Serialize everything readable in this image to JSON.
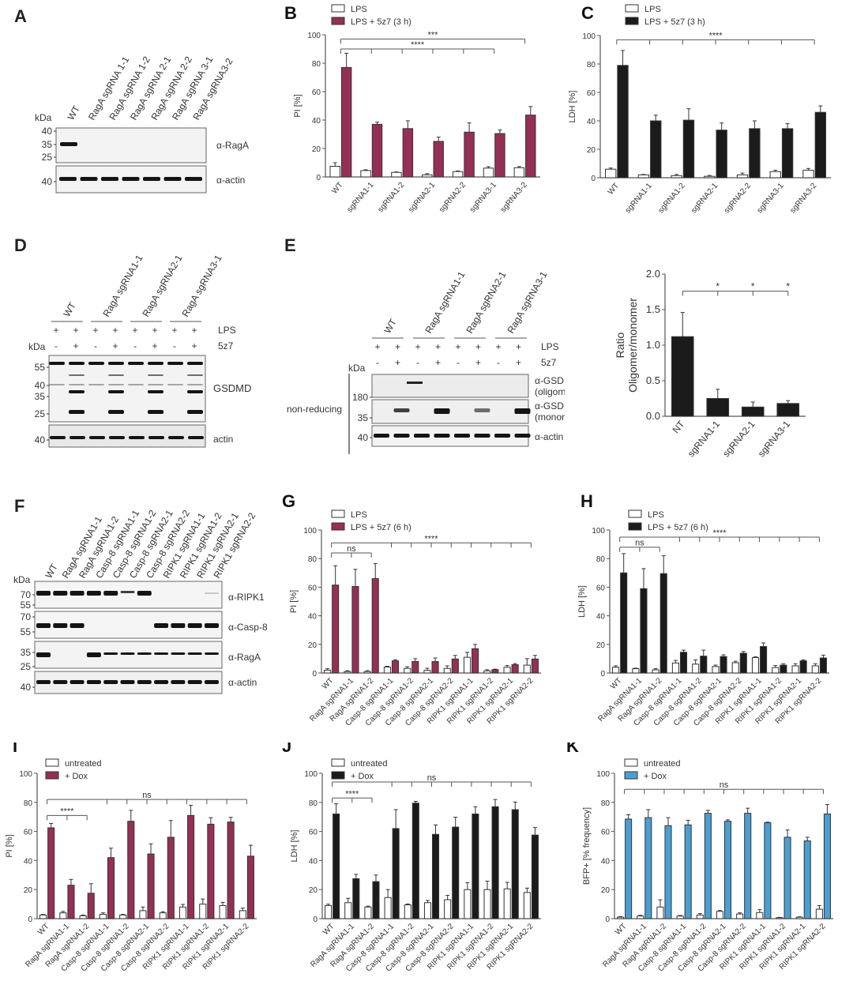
{
  "colors": {
    "maroon": "#952f55",
    "black": "#1b1b1b",
    "blue": "#4a9fd0",
    "white": "#ffffff",
    "axis": "#555555"
  },
  "panels": {
    "A": {
      "letter": "A",
      "kda_label": "kDa",
      "lanes": [
        "WT",
        "RagA sgRNA 1-1",
        "RagA sgRNA 1-2",
        "RagA sgRNA 2-1",
        "RagA sgRNA 2-2",
        "RagA sgRNA 3-1",
        "RagA sgRNA3-2"
      ],
      "blots": [
        {
          "label": "α-RagA",
          "markers": [
            "40",
            "35",
            "25"
          ]
        },
        {
          "label": "α-actin",
          "markers": [
            "40"
          ]
        }
      ]
    },
    "D": {
      "letter": "D",
      "kda_label": "kDa",
      "groups": [
        "WT",
        "RagA sgRNA1-1",
        "RagA sgRNA2-1",
        "RagA sgRNA3-1"
      ],
      "lps_label": "LPS",
      "lps_signs": [
        "+",
        "+",
        "+",
        "+",
        "+",
        "+",
        "+",
        "+"
      ],
      "z_label": "5z7",
      "z_signs": [
        "-",
        "+",
        "-",
        "+",
        "-",
        "+",
        "-",
        "+"
      ],
      "blots": [
        {
          "label": "GSDMD",
          "markers": [
            "55",
            "40",
            "35",
            "25"
          ]
        },
        {
          "label": "actin",
          "markers": [
            "40"
          ]
        }
      ]
    },
    "E": {
      "letter": "E",
      "kda_label": "kDa",
      "groups": [
        "WT",
        "RagA sgRNA1-1",
        "RagA sgRNA2-1",
        "RagA sgRNA3-1"
      ],
      "lps_label": "LPS",
      "lps_signs": [
        "+",
        "+",
        "+",
        "+",
        "+",
        "+",
        "+",
        "+"
      ],
      "z_label": "5z7",
      "z_signs": [
        "-",
        "+",
        "-",
        "+",
        "-",
        "+",
        "-",
        "+"
      ],
      "side_label": "non-reducing",
      "blots": [
        {
          "label": "α-GSDMD",
          "sublabel": "(oligomer)",
          "markers": [
            "180"
          ]
        },
        {
          "label": "α-GSDMD",
          "sublabel": "(monomer)",
          "markers": [
            "35"
          ]
        },
        {
          "label": "α-actin",
          "markers": [
            "40"
          ]
        }
      ]
    },
    "F": {
      "letter": "F",
      "kda_label": "kDa",
      "lanes": [
        "WT",
        "RagA sgRNA1-1",
        "RagA sgRNA1-2",
        "Casp-8 sgRNA1-1",
        "Casp-8 sgRNA1-2",
        "Casp-8 sgRNA2-1",
        "Casp-8 sgRNA2-2",
        "RIPK1 sgRNA1-1",
        "RIPK1 sgRNA1-2",
        "RIPK1 sgRNA2-1",
        "RIPK1 sgRNA2-2"
      ],
      "blots": [
        {
          "label": "α-RIPK1",
          "markers": [
            "70",
            "55"
          ]
        },
        {
          "label": "α-Casp-8",
          "markers": [
            "70",
            "55"
          ]
        },
        {
          "label": "α-RagA",
          "markers": [
            "35",
            "25"
          ]
        },
        {
          "label": "α-actin",
          "markers": [
            "40"
          ]
        }
      ]
    }
  },
  "chart_data": [
    {
      "id": "B",
      "letter": "B",
      "type": "bar",
      "categories": [
        "WT",
        "sgRNA1-1",
        "sgRNA1-2",
        "sgRNA2-1",
        "sgRNA2-2",
        "sgRNA3-1",
        "sgRNA3-2"
      ],
      "series": [
        {
          "name": "LPS",
          "color": "#ffffff",
          "values": [
            7.5,
            4.5,
            3.2,
            1.5,
            3.8,
            6.2,
            6.5
          ],
          "errors": [
            2.5,
            0.5,
            0.3,
            0.8,
            0.4,
            1.0,
            0.8
          ]
        },
        {
          "name": "LPS + 5z7 (3 h)",
          "color": "#952f55",
          "values": [
            77,
            37,
            34,
            25,
            31.5,
            30.5,
            43.5
          ],
          "errors": [
            10,
            1.5,
            5.5,
            3,
            6.5,
            2.5,
            6
          ]
        }
      ],
      "ylabel": "PI [%]",
      "ylim": [
        0,
        100
      ],
      "yticks": [
        0,
        20,
        40,
        60,
        80,
        100
      ],
      "brackets": [
        {
          "label": "***",
          "from": 0,
          "to": 6,
          "level": 97,
          "ticks": [
            0,
            6
          ]
        },
        {
          "label": "****",
          "from": 0,
          "to": 5,
          "level": 90,
          "ticks": [
            0,
            1,
            2,
            3,
            4,
            5
          ]
        }
      ],
      "legend": "top-left"
    },
    {
      "id": "C",
      "letter": "C",
      "type": "bar",
      "categories": [
        "WT",
        "sgRNA1-1",
        "sgRNA1-2",
        "sgRNA2-1",
        "sgRNA2-2",
        "sgRNA3-1",
        "sgRNA3-2"
      ],
      "series": [
        {
          "name": "LPS",
          "color": "#ffffff",
          "values": [
            6,
            2,
            1.5,
            1,
            2,
            4.3,
            5.3
          ],
          "errors": [
            0.8,
            0.3,
            0.8,
            0.6,
            1.2,
            1.0,
            1.2
          ]
        },
        {
          "name": "LPS + 5z7 (3 h)",
          "color": "#1b1b1b",
          "values": [
            79,
            40,
            40.5,
            33.5,
            34.5,
            34.5,
            46
          ],
          "errors": [
            10.5,
            4,
            8,
            5,
            5.5,
            3.5,
            4.5
          ]
        }
      ],
      "ylabel": "LDH [%]",
      "ylim": [
        0,
        100
      ],
      "yticks": [
        0,
        20,
        40,
        60,
        80,
        100
      ],
      "brackets": [
        {
          "label": "****",
          "from": 0,
          "to": 6,
          "level": 97,
          "ticks": [
            0,
            1,
            2,
            3,
            4,
            5,
            6
          ]
        }
      ],
      "legend": "top-left"
    },
    {
      "id": "E2",
      "letter": "",
      "type": "bar",
      "categories": [
        "NT",
        "sgRNA1-1",
        "sgRNA2-1",
        "sgRNA3-1"
      ],
      "series": [
        {
          "name": "Ratio",
          "color": "#1b1b1b",
          "values": [
            1.12,
            0.25,
            0.13,
            0.18
          ],
          "errors": [
            0.34,
            0.13,
            0.07,
            0.04
          ]
        }
      ],
      "ylabel_line1": "Ratio",
      "ylabel_line2": "Oligomer/monomer",
      "ylim": [
        0,
        2.0
      ],
      "yticks": [
        "0.0",
        "0.5",
        "1.0",
        "1.5",
        "2.0"
      ],
      "brackets": [
        {
          "label": "*",
          "from": 0,
          "to": 3,
          "level": 1.76,
          "ticks": [
            0,
            1,
            2,
            3
          ],
          "stars_at": [
            1,
            2,
            3
          ]
        }
      ]
    },
    {
      "id": "G",
      "letter": "G",
      "type": "bar",
      "categories": [
        "WT",
        "RagA sgRNA1-1",
        "RagA sgRNA1-2",
        "Casp-8 sgRNA1-1",
        "Casp-8 sgRNA1-2",
        "Casp-8 sgRNA2-1",
        "Casp-8 sgRNA2-2",
        "RIPK1 sgRNA1-1",
        "RIPK1 sgRNA1-2",
        "RIPK1 sgRNA2-1",
        "RIPK1 sgRNA2-2"
      ],
      "series": [
        {
          "name": "LPS",
          "color": "#ffffff",
          "values": [
            2,
            1,
            1,
            4.2,
            3.2,
            1.8,
            3.2,
            11,
            1.5,
            4,
            5.5
          ],
          "errors": [
            1,
            0.6,
            0.6,
            0.5,
            1.2,
            1.5,
            1.8,
            3.5,
            0.8,
            1.2,
            4.5
          ]
        },
        {
          "name": "LPS + 5z7 (6 h)",
          "color": "#952f55",
          "values": [
            61.5,
            60.5,
            66,
            8.5,
            8,
            8,
            9.8,
            17,
            2.3,
            5.8,
            9.8
          ],
          "errors": [
            13.5,
            12,
            10.5,
            0.8,
            2,
            2.5,
            2.5,
            3,
            0.4,
            0.8,
            2.5
          ]
        }
      ],
      "ylabel": "PI [%]",
      "ylim": [
        0,
        100
      ],
      "yticks": [
        0,
        20,
        40,
        60,
        80,
        100
      ],
      "brackets": [
        {
          "label": "****",
          "from": 0,
          "to": 10,
          "level": 91,
          "ticks": [
            0,
            3,
            4,
            5,
            6,
            7,
            8,
            9,
            10
          ]
        },
        {
          "label": "ns",
          "from": 0,
          "to": 2,
          "level": 84,
          "ticks": [
            0,
            1,
            2
          ]
        }
      ],
      "legend": "top-left"
    },
    {
      "id": "H",
      "letter": "H",
      "type": "bar",
      "categories": [
        "WT",
        "RagA sgRNA1-1",
        "RagA sgRNA1-2",
        "Casp-8 sgRNA1-1",
        "Casp-8 sgRNA1-2",
        "Casp-8 sgRNA2-1",
        "Casp-8 sgRNA2-2",
        "RIPK1 sgRNA1-1",
        "RIPK1 sgRNA1-2",
        "RIPK1 sgRNA2-1",
        "RIPK1 sgRNA2-2"
      ],
      "series": [
        {
          "name": "LPS",
          "color": "#ffffff",
          "values": [
            4,
            3,
            2.2,
            7,
            6.2,
            4.5,
            7.2,
            10.8,
            3.8,
            5,
            5
          ],
          "errors": [
            1,
            0.4,
            0.8,
            1.8,
            3,
            1,
            1,
            0.5,
            1.4,
            1.5,
            1.5
          ]
        },
        {
          "name": "LPS + 5z7 (6 h)",
          "color": "#1b1b1b",
          "values": [
            70,
            59,
            69.5,
            14.5,
            11.8,
            11.5,
            13.8,
            18.5,
            5.5,
            8.5,
            10.5
          ],
          "errors": [
            13.5,
            14,
            12.5,
            1.5,
            4.2,
            1.2,
            1.2,
            2.5,
            1,
            0.7,
            2
          ]
        }
      ],
      "ylabel": "LDH [%]",
      "ylim": [
        0,
        100
      ],
      "yticks": [
        0,
        20,
        40,
        60,
        80,
        100
      ],
      "brackets": [
        {
          "label": "****",
          "from": 0,
          "to": 10,
          "level": 95,
          "ticks": [
            0,
            3,
            4,
            5,
            6,
            7,
            8,
            9,
            10
          ]
        },
        {
          "label": "ns",
          "from": 0,
          "to": 2,
          "level": 88,
          "ticks": [
            0,
            1,
            2
          ]
        }
      ],
      "legend": "top-left"
    },
    {
      "id": "I",
      "letter": "I",
      "type": "bar",
      "categories": [
        "WT",
        "RagA sgRNA1-1",
        "RagA sgRNA1-2",
        "Casp-8 sgRNA1-1",
        "Casp-8 sgRNA1-2",
        "Casp-8 sgRNA2-1",
        "Casp-8 sgRNA2-2",
        "RIPK1 sgRNA1-1",
        "RIPK1 sgRNA1-2",
        "RIPK1 sgRNA2-1",
        "RIPK1 sgRNA2-2"
      ],
      "series": [
        {
          "name": "untreated",
          "color": "#ffffff",
          "values": [
            2.5,
            4,
            2,
            3,
            2.5,
            5.5,
            4,
            8,
            10,
            9,
            5.5
          ],
          "errors": [
            0.4,
            1,
            0.5,
            1,
            0.4,
            2.5,
            0.8,
            1.8,
            3.5,
            2.2,
            1.8
          ]
        },
        {
          "name": "+ Dox",
          "color": "#952f55",
          "values": [
            62.5,
            23,
            17.5,
            42,
            67,
            44.5,
            56,
            71,
            65,
            66.5,
            43
          ],
          "errors": [
            3,
            4,
            6.5,
            6.5,
            7.5,
            7,
            11.5,
            7,
            4.5,
            3.2,
            7.5
          ]
        }
      ],
      "ylabel": "PI [%]",
      "ylim": [
        0,
        100
      ],
      "yticks": [
        0,
        20,
        40,
        60,
        80,
        100
      ],
      "brackets": [
        {
          "label": "ns",
          "from": 0,
          "to": 10,
          "level": 82,
          "ticks": [
            0,
            3,
            4,
            5,
            6,
            7,
            8,
            9,
            10
          ]
        },
        {
          "label": "****",
          "from": 0,
          "to": 2,
          "level": 71,
          "ticks": [
            0,
            1,
            2
          ]
        }
      ],
      "legend": "top-left"
    },
    {
      "id": "J",
      "letter": "J",
      "type": "bar",
      "categories": [
        "WT",
        "RagA sgRNA1-1",
        "RagA sgRNA1-2",
        "Casp-8 sgRNA1-1",
        "Casp-8 sgRNA1-2",
        "Casp-8 sgRNA2-1",
        "Casp-8 sgRNA2-2",
        "RIPK1 sgRNA1-1",
        "RIPK1 sgRNA1-2",
        "RIPK1 sgRNA2-1",
        "RIPK1 sgRNA2-2"
      ],
      "series": [
        {
          "name": "untreated",
          "color": "#ffffff",
          "values": [
            9,
            11,
            8,
            14.5,
            9.5,
            11,
            13,
            20,
            20,
            20.5,
            18
          ],
          "errors": [
            1,
            3,
            0.6,
            5.5,
            0.6,
            1.5,
            3,
            4.8,
            5.8,
            4.5,
            3
          ]
        },
        {
          "name": "+ Dox",
          "color": "#1b1b1b",
          "values": [
            72,
            27.5,
            25.5,
            62,
            79.5,
            58,
            63,
            72,
            77,
            75,
            57.5
          ],
          "errors": [
            7,
            3,
            4.5,
            13,
            1.2,
            6.5,
            6.8,
            5,
            5,
            5.2,
            5.2
          ]
        }
      ],
      "ylabel": "LDH [%]",
      "ylim": [
        0,
        100
      ],
      "yticks": [
        0,
        20,
        40,
        60,
        80,
        100
      ],
      "brackets": [
        {
          "label": "ns",
          "from": 0,
          "to": 10,
          "level": 94,
          "ticks": [
            0,
            3,
            4,
            5,
            6,
            7,
            8,
            9,
            10
          ]
        },
        {
          "label": "****",
          "from": 0,
          "to": 2,
          "level": 83,
          "ticks": [
            0,
            1,
            2
          ]
        }
      ],
      "legend": "top-left"
    },
    {
      "id": "K",
      "letter": "K",
      "type": "bar",
      "categories": [
        "WT",
        "RagA sgRNA1-1",
        "RagA sgRNA1-2",
        "Casp-8 sgRNA1-1",
        "Casp-8 sgRNA1-2",
        "Casp-8 sgRNA2-1",
        "Casp-8 sgRNA2-2",
        "RIPK1 sgRNA1-1",
        "RIPK1 sgRNA1-2",
        "RIPK1 sgRNA2-1",
        "RIPK1 sgRNA2-2"
      ],
      "series": [
        {
          "name": "untreated",
          "color": "#ffffff",
          "values": [
            1,
            1.8,
            8,
            1.8,
            2.5,
            5,
            3.2,
            4.2,
            0.7,
            1,
            6.5
          ],
          "errors": [
            0.4,
            0.5,
            5,
            0.4,
            1,
            0.6,
            0.8,
            2,
            0.2,
            0.3,
            2.5
          ]
        },
        {
          "name": "+ Dox",
          "color": "#4a9fd0",
          "values": [
            68.5,
            69.5,
            64,
            64.5,
            72.5,
            67,
            72.5,
            66,
            56,
            53.5,
            72
          ],
          "errors": [
            3,
            5.5,
            5.5,
            3.2,
            2,
            1,
            3.5,
            0.4,
            5,
            2.5,
            6.5
          ]
        }
      ],
      "ylabel": "BFP+ [% frequency]",
      "ylim": [
        0,
        100
      ],
      "yticks": [
        0,
        20,
        40,
        60,
        80,
        100
      ],
      "brackets": [
        {
          "label": "ns",
          "from": 0,
          "to": 10,
          "level": 89,
          "ticks": [
            0,
            1,
            2,
            3,
            4,
            5,
            6,
            7,
            8,
            9,
            10
          ]
        }
      ],
      "legend": "top-left"
    }
  ]
}
